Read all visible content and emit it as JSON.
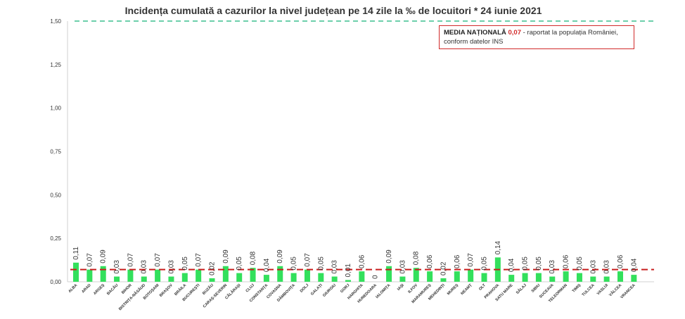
{
  "colors": {
    "bar": "#33e05c",
    "threshold_line": "#3dbf8f",
    "mean_line": "#c81e1e",
    "note_border": "#d12a2a"
  },
  "chart_data": {
    "type": "bar",
    "title": "Incidența cumulată a cazurilor la nivel județean pe 14 zile la ‰ de locuitori *  24 iunie 2021",
    "xlabel": "",
    "ylabel": "",
    "ylim": [
      0,
      1.5
    ],
    "yticks": [
      "0,00",
      "0,25",
      "0,50",
      "0,75",
      "1,00",
      "1,25",
      "1,50"
    ],
    "ytick_values": [
      0,
      0.25,
      0.5,
      0.75,
      1.0,
      1.25,
      1.5
    ],
    "grid": false,
    "threshold": 1.5,
    "national_mean": 0.07,
    "categories": [
      "ALBA",
      "ARAD",
      "ARGEȘ",
      "BACĂU",
      "BIHOR",
      "BISTRIȚA-NĂSĂUD",
      "BOTOȘANI",
      "BRAȘOV",
      "BRĂILA",
      "BUCUREȘTI",
      "BUZĂU",
      "CARAȘ-SEVERIN",
      "CĂLĂRAȘI",
      "CLUJ",
      "CONSTANȚA",
      "COVASNA",
      "DÂMBOVIȚA",
      "DOLJ",
      "GALAȚI",
      "GIURGIU",
      "GORJ",
      "HARGHITA",
      "HUNEDOARA",
      "IALOMIȚA",
      "IAȘI",
      "ILFOV",
      "MARAMUREȘ",
      "MEHEDINȚI",
      "MUREȘ",
      "NEAMȚ",
      "OLT",
      "PRAHOVA",
      "SATU MARE",
      "SĂLAJ",
      "SIBIU",
      "SUCEAVA",
      "TELEORMAN",
      "TIMIȘ",
      "TULCEA",
      "VASLUI",
      "VÂLCEA",
      "VRANCEA"
    ],
    "values": [
      0.11,
      0.07,
      0.09,
      0.03,
      0.07,
      0.03,
      0.07,
      0.03,
      0.05,
      0.07,
      0.02,
      0.09,
      0.05,
      0.08,
      0.04,
      0.09,
      0.05,
      0.07,
      0.05,
      0.03,
      0.01,
      0.06,
      0,
      0.09,
      0.03,
      0.08,
      0.06,
      0.02,
      0.06,
      0.07,
      0.05,
      0.14,
      0.04,
      0.05,
      0.05,
      0.03,
      0.06,
      0.05,
      0.03,
      0.03,
      0.06,
      0.04
    ],
    "data_labels": [
      "0,11",
      "0,07",
      "0,09",
      "0,03",
      "0,07",
      "0,03",
      "0,07",
      "0,03",
      "0,05",
      "0,07",
      "0,02",
      "0,09",
      "0,05",
      "0,08",
      "0,04",
      "0,09",
      "0,05",
      "0,07",
      "0,05",
      "0,03",
      "0,01",
      "0,06",
      "0",
      "0,09",
      "0,03",
      "0,08",
      "0,06",
      "0,02",
      "0,06",
      "0,07",
      "0,05",
      "0,14",
      "0,04",
      "0,05",
      "0,05",
      "0,03",
      "0,06",
      "0,05",
      "0,03",
      "0,03",
      "0,06",
      "0,04"
    ]
  },
  "note": {
    "label": "MEDIA NAȚIONALĂ",
    "value": "0,07",
    "text_line1": " - raportat la populația României,",
    "text_line2": "conform datelor INS"
  }
}
